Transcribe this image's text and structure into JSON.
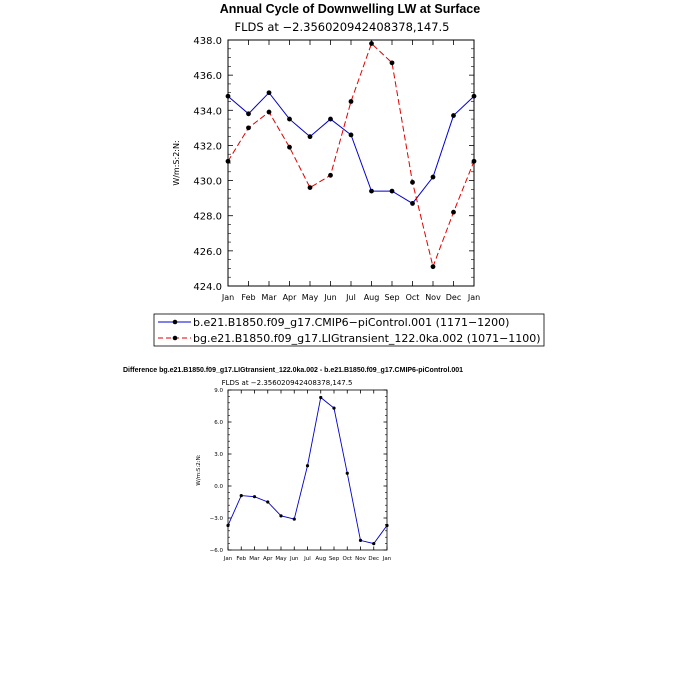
{
  "chart_data": [
    {
      "type": "line",
      "title": "Annual Cycle of Downwelling LW at Surface",
      "subtitle": "FLDS at −2.356020942408378,147.5",
      "ylabel": "W/m:S:2:N:",
      "ylim": [
        424.0,
        438.0
      ],
      "yticks": [
        "424.0",
        "426.0",
        "428.0",
        "430.0",
        "432.0",
        "434.0",
        "436.0",
        "438.0"
      ],
      "categories": [
        "Jan",
        "Feb",
        "Mar",
        "Apr",
        "May",
        "Jun",
        "Jul",
        "Aug",
        "Sep",
        "Oct",
        "Nov",
        "Dec",
        "Jan"
      ],
      "series": [
        {
          "name": "b.e21.B1850.f09_g17.CMIP6−piControl.001 (1171−1200)",
          "color": "#0000cc",
          "dash": "solid",
          "values": [
            434.8,
            433.8,
            435.0,
            433.5,
            432.5,
            433.5,
            432.6,
            429.4,
            429.4,
            428.7,
            430.2,
            433.7,
            434.8
          ]
        },
        {
          "name": "bg.e21.B1850.f09_g17.LIGtransient_122.0ka.002 (1071−1100)",
          "color": "#e00000",
          "dash": "dashed",
          "values": [
            431.1,
            433.0,
            433.9,
            431.9,
            429.6,
            430.3,
            434.5,
            437.8,
            436.7,
            429.9,
            425.1,
            428.2,
            431.1
          ]
        }
      ],
      "legend": "bottom"
    },
    {
      "type": "line",
      "title": "Difference bg.e21.B1850.f09_g17.LIGtransient_122.0ka.002 - b.e21.B1850.f09_g17.CMIP6-piControl.001",
      "subtitle": "FLDS at −2.356020942408378,147.5",
      "ylabel": "W/m:S:2:N:",
      "ylim": [
        -6.0,
        9.0
      ],
      "yticks": [
        "−6.0",
        "−3.0",
        "0.0",
        "3.0",
        "6.0",
        "9.0"
      ],
      "categories": [
        "Jan",
        "Feb",
        "Mar",
        "Apr",
        "May",
        "Jun",
        "Jul",
        "Aug",
        "Sep",
        "Oct",
        "Nov",
        "Dec",
        "Jan"
      ],
      "series": [
        {
          "color": "#0000cc",
          "values": [
            -3.7,
            -0.9,
            -1.0,
            -1.5,
            -2.8,
            -3.1,
            1.9,
            8.3,
            7.3,
            1.2,
            -5.1,
            -5.4,
            -3.7
          ]
        }
      ]
    }
  ]
}
